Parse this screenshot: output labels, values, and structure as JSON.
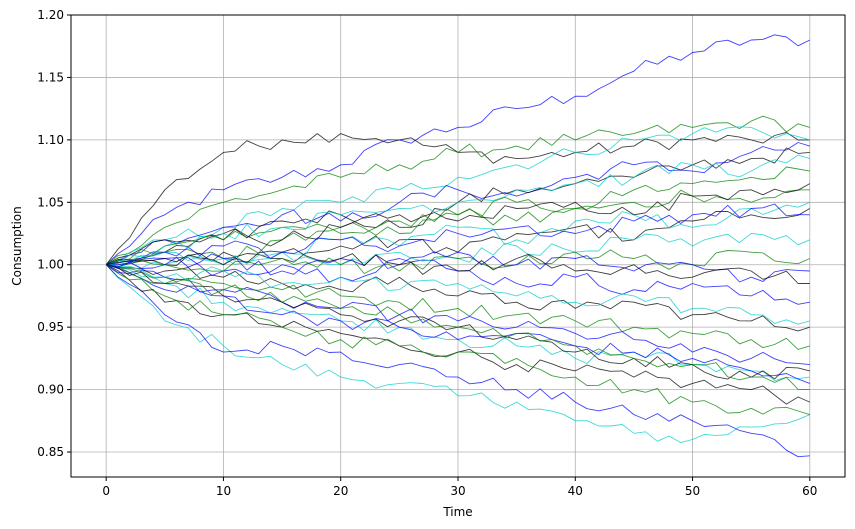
{
  "chart_data": {
    "type": "line",
    "title": "",
    "xlabel": "Time",
    "ylabel": "Consumption",
    "xlim": [
      -3,
      63
    ],
    "ylim": [
      0.83,
      1.2
    ],
    "x_ticks": [
      0,
      10,
      20,
      30,
      40,
      50,
      60
    ],
    "y_ticks": [
      0.85,
      0.9,
      0.95,
      1.0,
      1.05,
      1.1,
      1.15,
      1.2
    ],
    "x_tick_labels": [
      "0",
      "10",
      "20",
      "30",
      "40",
      "50",
      "60"
    ],
    "y_tick_labels": [
      "0.85",
      "0.90",
      "0.95",
      "1.00",
      "1.05",
      "1.10",
      "1.15",
      "1.20"
    ],
    "grid": true,
    "legend": "none",
    "x": [
      0,
      5,
      10,
      15,
      20,
      25,
      30,
      35,
      40,
      45,
      50,
      55,
      60
    ],
    "series_colors": [
      "#0000ff",
      "#00cccc",
      "#008000",
      "#000000"
    ],
    "series": [
      {
        "color": "#0000ff",
        "values": [
          1.0,
          1.04,
          1.06,
          1.07,
          1.08,
          1.1,
          1.11,
          1.125,
          1.135,
          1.155,
          1.17,
          1.18,
          1.18
        ]
      },
      {
        "color": "#000000",
        "values": [
          1.0,
          1.06,
          1.09,
          1.1,
          1.105,
          1.1,
          1.09,
          1.085,
          1.09,
          1.095,
          1.1,
          1.1,
          1.1
        ]
      },
      {
        "color": "#00cccc",
        "values": [
          1.0,
          0.955,
          0.935,
          0.92,
          0.91,
          0.905,
          0.895,
          0.89,
          0.875,
          0.865,
          0.86,
          0.87,
          0.88
        ]
      },
      {
        "color": "#0000ff",
        "values": [
          1.0,
          0.96,
          0.93,
          0.935,
          0.93,
          0.92,
          0.91,
          0.9,
          0.89,
          0.88,
          0.875,
          0.865,
          0.847
        ]
      },
      {
        "color": "#008000",
        "values": [
          1.0,
          1.03,
          1.05,
          1.06,
          1.07,
          1.08,
          1.09,
          1.095,
          1.1,
          1.105,
          1.11,
          1.115,
          1.11
        ]
      },
      {
        "color": "#00cccc",
        "values": [
          1.0,
          1.02,
          1.03,
          1.045,
          1.05,
          1.06,
          1.07,
          1.08,
          1.09,
          1.1,
          1.105,
          1.11,
          1.1
        ]
      },
      {
        "color": "#000000",
        "values": [
          1.0,
          0.97,
          0.96,
          0.95,
          0.945,
          0.935,
          0.93,
          0.92,
          0.915,
          0.91,
          0.905,
          0.9,
          0.89
        ]
      },
      {
        "color": "#008000",
        "values": [
          1.0,
          0.975,
          0.96,
          0.95,
          0.94,
          0.935,
          0.93,
          0.925,
          0.91,
          0.9,
          0.89,
          0.885,
          0.88
        ]
      },
      {
        "color": "#0000ff",
        "values": [
          1.0,
          1.02,
          1.03,
          1.04,
          1.035,
          1.05,
          1.06,
          1.055,
          1.07,
          1.08,
          1.075,
          1.09,
          1.095
        ]
      },
      {
        "color": "#000000",
        "values": [
          1.0,
          1.01,
          1.02,
          1.035,
          1.04,
          1.03,
          1.05,
          1.06,
          1.065,
          1.07,
          1.08,
          1.085,
          1.09
        ]
      },
      {
        "color": "#00cccc",
        "values": [
          1.0,
          0.985,
          0.97,
          0.965,
          0.955,
          0.95,
          0.94,
          0.935,
          0.925,
          0.93,
          0.92,
          0.915,
          0.91
        ]
      },
      {
        "color": "#008000",
        "values": [
          1.0,
          1.01,
          1.005,
          1.02,
          1.03,
          1.025,
          1.04,
          1.05,
          1.045,
          1.06,
          1.065,
          1.07,
          1.075
        ]
      },
      {
        "color": "#0000ff",
        "values": [
          1.0,
          0.99,
          0.98,
          0.97,
          0.965,
          0.96,
          0.955,
          0.95,
          0.945,
          0.94,
          0.93,
          0.925,
          0.92
        ]
      },
      {
        "color": "#000000",
        "values": [
          1.0,
          1.0,
          1.01,
          1.005,
          1.015,
          1.02,
          1.01,
          1.025,
          1.03,
          1.02,
          1.035,
          1.04,
          1.045
        ]
      },
      {
        "color": "#00cccc",
        "values": [
          1.0,
          1.01,
          1.0,
          1.01,
          1.02,
          1.015,
          1.03,
          1.02,
          1.035,
          1.04,
          1.03,
          1.045,
          1.05
        ]
      },
      {
        "color": "#008000",
        "values": [
          1.0,
          0.99,
          0.985,
          0.98,
          0.975,
          0.97,
          0.965,
          0.96,
          0.955,
          0.95,
          0.945,
          0.94,
          0.935
        ]
      },
      {
        "color": "#0000ff",
        "values": [
          1.0,
          1.005,
          0.995,
          1.0,
          0.99,
          1.005,
          0.995,
          0.985,
          0.99,
          0.98,
          0.985,
          0.975,
          0.97
        ]
      },
      {
        "color": "#000000",
        "values": [
          1.0,
          0.995,
          0.99,
          0.985,
          0.98,
          0.99,
          0.975,
          0.97,
          0.965,
          0.97,
          0.96,
          0.955,
          0.95
        ]
      },
      {
        "color": "#00cccc",
        "values": [
          1.0,
          1.0,
          1.005,
          1.01,
          1.0,
          1.01,
          1.005,
          1.015,
          1.01,
          1.02,
          1.015,
          1.025,
          1.02
        ]
      },
      {
        "color": "#008000",
        "values": [
          1.0,
          1.015,
          1.02,
          1.03,
          1.025,
          1.035,
          1.04,
          1.035,
          1.045,
          1.05,
          1.055,
          1.05,
          1.06
        ]
      },
      {
        "color": "#0000ff",
        "values": [
          1.0,
          0.98,
          0.975,
          0.96,
          0.955,
          0.95,
          0.94,
          0.945,
          0.935,
          0.93,
          0.925,
          0.915,
          0.905
        ]
      },
      {
        "color": "#000000",
        "values": [
          1.0,
          1.02,
          1.025,
          1.02,
          1.03,
          1.04,
          1.035,
          1.045,
          1.05,
          1.04,
          1.055,
          1.06,
          1.065
        ]
      },
      {
        "color": "#00cccc",
        "values": [
          1.0,
          0.99,
          0.995,
          0.985,
          0.99,
          0.98,
          0.985,
          0.975,
          0.97,
          0.975,
          0.965,
          0.96,
          0.955
        ]
      },
      {
        "color": "#008000",
        "values": [
          1.0,
          1.0,
          0.995,
          1.005,
          1.0,
          0.995,
          1.005,
          1.0,
          1.01,
          1.005,
          1.0,
          1.01,
          1.005
        ]
      },
      {
        "color": "#0000ff",
        "values": [
          1.0,
          1.01,
          1.015,
          1.01,
          1.02,
          1.015,
          1.025,
          1.03,
          1.025,
          1.035,
          1.04,
          1.045,
          1.04
        ]
      },
      {
        "color": "#000000",
        "values": [
          1.0,
          0.985,
          0.975,
          0.97,
          0.96,
          0.955,
          0.95,
          0.94,
          0.93,
          0.925,
          0.92,
          0.91,
          0.915
        ]
      },
      {
        "color": "#00cccc",
        "values": [
          1.0,
          1.015,
          1.025,
          1.03,
          1.04,
          1.045,
          1.05,
          1.06,
          1.065,
          1.07,
          1.08,
          1.075,
          1.085
        ]
      },
      {
        "color": "#008000",
        "values": [
          1.0,
          0.985,
          0.98,
          0.97,
          0.965,
          0.96,
          0.95,
          0.945,
          0.935,
          0.925,
          0.92,
          0.91,
          0.9
        ]
      },
      {
        "color": "#0000ff",
        "values": [
          1.0,
          1.0,
          1.005,
          0.995,
          1.005,
          1.0,
          1.01,
          1.0,
          1.005,
          0.995,
          1.0,
          0.99,
          0.995
        ]
      },
      {
        "color": "#000000",
        "values": [
          1.0,
          1.005,
          1.0,
          1.01,
          1.005,
          1.0,
          0.995,
          1.005,
          0.995,
          1.0,
          0.99,
          0.995,
          0.985
        ]
      }
    ]
  }
}
